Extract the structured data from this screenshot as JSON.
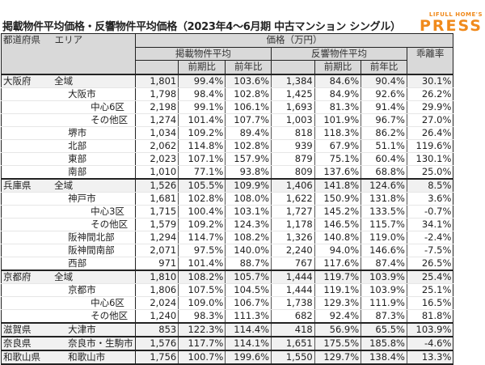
{
  "title": "掲載物件平均価格・反響物件平均価格（2023年4〜6月期 中古マンション シングル）",
  "logo": {
    "line1": "LIFULL HOME'S",
    "line2": "PRESS",
    "color": "#f08a1c"
  },
  "header": {
    "pref": "都道府県",
    "area": "エリア",
    "price": "価格（万円）",
    "listed": "掲載物件平均",
    "inquiry": "反響物件平均",
    "gap": "乖離率",
    "qoq": "前期比",
    "yoy": "前年比"
  },
  "rows": [
    {
      "pref": "大阪府",
      "area": "全域",
      "level": 0,
      "group": true,
      "v": [
        "1,801",
        "99.4%",
        "103.6%",
        "1,384",
        "84.6%",
        "90.4%",
        "30.1%"
      ]
    },
    {
      "pref": "",
      "area": "大阪市",
      "level": 1,
      "v": [
        "1,798",
        "98.4%",
        "102.8%",
        "1,425",
        "84.9%",
        "92.6%",
        "26.2%"
      ]
    },
    {
      "pref": "",
      "area": "中心6区",
      "level": 2,
      "v": [
        "2,198",
        "99.1%",
        "106.1%",
        "1,693",
        "81.3%",
        "91.4%",
        "29.9%"
      ]
    },
    {
      "pref": "",
      "area": "その他区",
      "level": 2,
      "v": [
        "1,274",
        "101.4%",
        "107.7%",
        "1,003",
        "101.9%",
        "96.7%",
        "27.0%"
      ]
    },
    {
      "pref": "",
      "area": "堺市",
      "level": 1,
      "v": [
        "1,034",
        "109.2%",
        "89.4%",
        "818",
        "118.3%",
        "86.2%",
        "26.4%"
      ]
    },
    {
      "pref": "",
      "area": "北部",
      "level": 1,
      "v": [
        "2,062",
        "114.8%",
        "102.8%",
        "939",
        "67.9%",
        "51.1%",
        "119.6%"
      ]
    },
    {
      "pref": "",
      "area": "東部",
      "level": 1,
      "v": [
        "2,023",
        "107.1%",
        "157.9%",
        "879",
        "75.1%",
        "60.4%",
        "130.1%"
      ]
    },
    {
      "pref": "",
      "area": "南部",
      "level": 1,
      "v": [
        "1,010",
        "77.1%",
        "93.8%",
        "809",
        "137.6%",
        "68.8%",
        "25.0%"
      ]
    },
    {
      "pref": "兵庫県",
      "area": "全域",
      "level": 0,
      "group": true,
      "v": [
        "1,526",
        "105.5%",
        "109.9%",
        "1,406",
        "141.8%",
        "124.6%",
        "8.5%"
      ]
    },
    {
      "pref": "",
      "area": "神戸市",
      "level": 1,
      "v": [
        "1,681",
        "102.8%",
        "108.0%",
        "1,622",
        "150.9%",
        "131.8%",
        "3.6%"
      ]
    },
    {
      "pref": "",
      "area": "中心3区",
      "level": 2,
      "v": [
        "1,715",
        "100.4%",
        "103.1%",
        "1,727",
        "145.2%",
        "133.5%",
        "-0.7%"
      ]
    },
    {
      "pref": "",
      "area": "その他区",
      "level": 2,
      "v": [
        "1,579",
        "109.2%",
        "124.3%",
        "1,178",
        "146.5%",
        "115.7%",
        "34.1%"
      ]
    },
    {
      "pref": "",
      "area": "阪神間北部",
      "level": 1,
      "v": [
        "1,294",
        "114.7%",
        "108.2%",
        "1,326",
        "140.8%",
        "119.0%",
        "-2.4%"
      ]
    },
    {
      "pref": "",
      "area": "阪神間南部",
      "level": 1,
      "v": [
        "2,071",
        "97.5%",
        "140.0%",
        "2,240",
        "94.0%",
        "146.6%",
        "-7.5%"
      ]
    },
    {
      "pref": "",
      "area": "西部",
      "level": 1,
      "v": [
        "971",
        "101.4%",
        "88.7%",
        "767",
        "117.6%",
        "87.4%",
        "26.5%"
      ]
    },
    {
      "pref": "京都府",
      "area": "全域",
      "level": 0,
      "group": true,
      "v": [
        "1,810",
        "108.2%",
        "105.7%",
        "1,444",
        "119.7%",
        "103.9%",
        "25.4%"
      ]
    },
    {
      "pref": "",
      "area": "京都市",
      "level": 1,
      "v": [
        "1,806",
        "107.5%",
        "104.5%",
        "1,444",
        "119.1%",
        "103.9%",
        "25.1%"
      ]
    },
    {
      "pref": "",
      "area": "中心6区",
      "level": 2,
      "v": [
        "2,024",
        "109.0%",
        "106.7%",
        "1,738",
        "129.3%",
        "111.9%",
        "16.5%"
      ]
    },
    {
      "pref": "",
      "area": "その他区",
      "level": 2,
      "v": [
        "1,240",
        "98.3%",
        "111.3%",
        "682",
        "92.4%",
        "87.3%",
        "81.8%"
      ]
    },
    {
      "pref": "滋賀県",
      "area": "大津市",
      "level": 1,
      "group": true,
      "v": [
        "853",
        "122.3%",
        "114.4%",
        "418",
        "56.9%",
        "65.5%",
        "103.9%"
      ]
    },
    {
      "pref": "奈良県",
      "area": "奈良市・生駒市",
      "level": 1,
      "group": true,
      "v": [
        "1,576",
        "117.7%",
        "114.1%",
        "1,651",
        "175.5%",
        "185.8%",
        "-4.6%"
      ]
    },
    {
      "pref": "和歌山県",
      "area": "和歌山市",
      "level": 1,
      "group": true,
      "v": [
        "1,756",
        "100.7%",
        "199.6%",
        "1,550",
        "129.7%",
        "138.4%",
        "13.3%"
      ]
    }
  ]
}
